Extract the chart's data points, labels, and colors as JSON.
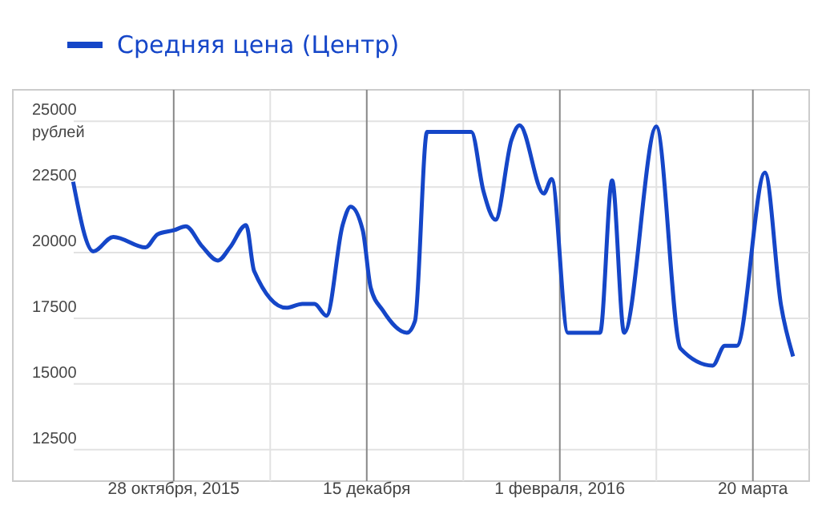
{
  "chart_data": {
    "type": "line",
    "ylabel": "рублей",
    "legend": "top left",
    "grid": true,
    "line_style": "solid",
    "xlim": [
      "2015-09-18",
      "2016-04-03"
    ],
    "xticks": [
      {
        "value": "2015-10-28",
        "label": "28 октября, 2015"
      },
      {
        "value": "2015-11-21",
        "label": null
      },
      {
        "value": "2015-12-15",
        "label": "15 декабря"
      },
      {
        "value": "2016-01-08",
        "label": null
      },
      {
        "value": "2016-02-01",
        "label": "1 февраля, 2016"
      },
      {
        "value": "2016-02-25",
        "label": null
      },
      {
        "value": "2016-03-20",
        "label": "20 марта"
      }
    ],
    "ylim": [
      11300,
      26200
    ],
    "yticks": [
      12500,
      15000,
      17500,
      20000,
      22500,
      25000
    ],
    "series": [
      {
        "name": "Средняя цена (Центр)",
        "color": "#1546c8",
        "x": [
          "2015-10-03",
          "2015-10-08",
          "2015-10-13",
          "2015-10-21",
          "2015-10-24",
          "2015-10-28",
          "2015-10-31",
          "2015-11-04",
          "2015-11-08",
          "2015-11-11",
          "2015-11-15",
          "2015-11-17",
          "2015-11-25",
          "2015-11-29",
          "2015-12-02",
          "2015-12-05",
          "2015-12-09",
          "2015-12-11",
          "2015-12-14",
          "2015-12-16",
          "2015-12-19",
          "2015-12-25",
          "2015-12-27",
          "2015-12-30",
          "2016-01-10",
          "2016-01-13",
          "2016-01-16",
          "2016-01-20",
          "2016-01-22",
          "2016-01-28",
          "2016-01-30",
          "2016-02-03",
          "2016-02-11",
          "2016-02-14",
          "2016-02-17",
          "2016-02-25",
          "2016-03-02",
          "2016-03-10",
          "2016-03-13",
          "2016-03-16",
          "2016-03-23",
          "2016-03-27",
          "2016-03-30"
        ],
        "values": [
          22700,
          20050,
          20600,
          20200,
          20700,
          20850,
          21000,
          20250,
          19700,
          20200,
          21050,
          19300,
          17900,
          18050,
          18050,
          17600,
          21050,
          21750,
          20850,
          18650,
          17800,
          16950,
          17400,
          24600,
          24600,
          22350,
          21250,
          24300,
          24850,
          22250,
          22800,
          16950,
          16950,
          22750,
          16950,
          24800,
          16350,
          15700,
          16450,
          16450,
          23050,
          18000,
          16050
        ]
      }
    ]
  }
}
